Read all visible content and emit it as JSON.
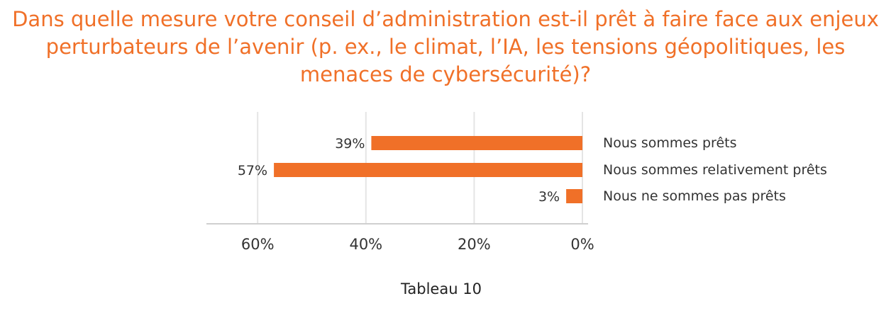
{
  "title": "Dans quelle mesure votre conseil d’administration est-il prêt à faire face aux enjeux perturbateurs de l’avenir (p. ex., le climat, l’IA, les tensions géopolitiques, les menaces de cybersécurité)?",
  "caption": "Tableau 10",
  "colors": {
    "title": "#f07028",
    "bar": "#f07028",
    "grid": "#e5e5e5",
    "axis": "#cfcfcf",
    "text": "#333333"
  },
  "chart_data": {
    "type": "bar",
    "orientation": "horizontal",
    "x_direction": "reversed",
    "categories": [
      "Nous sommes prêts",
      "Nous sommes relativement prêts",
      "Nous ne sommes pas prêts"
    ],
    "values": [
      39,
      57,
      3
    ],
    "value_labels": [
      "39%",
      "57%",
      "3%"
    ],
    "xlim": [
      0,
      60
    ],
    "xticks": [
      60,
      40,
      20,
      0
    ],
    "xtick_labels": [
      "60%",
      "40%",
      "20%",
      "0%"
    ],
    "grid": true,
    "category_labels_side": "right"
  }
}
